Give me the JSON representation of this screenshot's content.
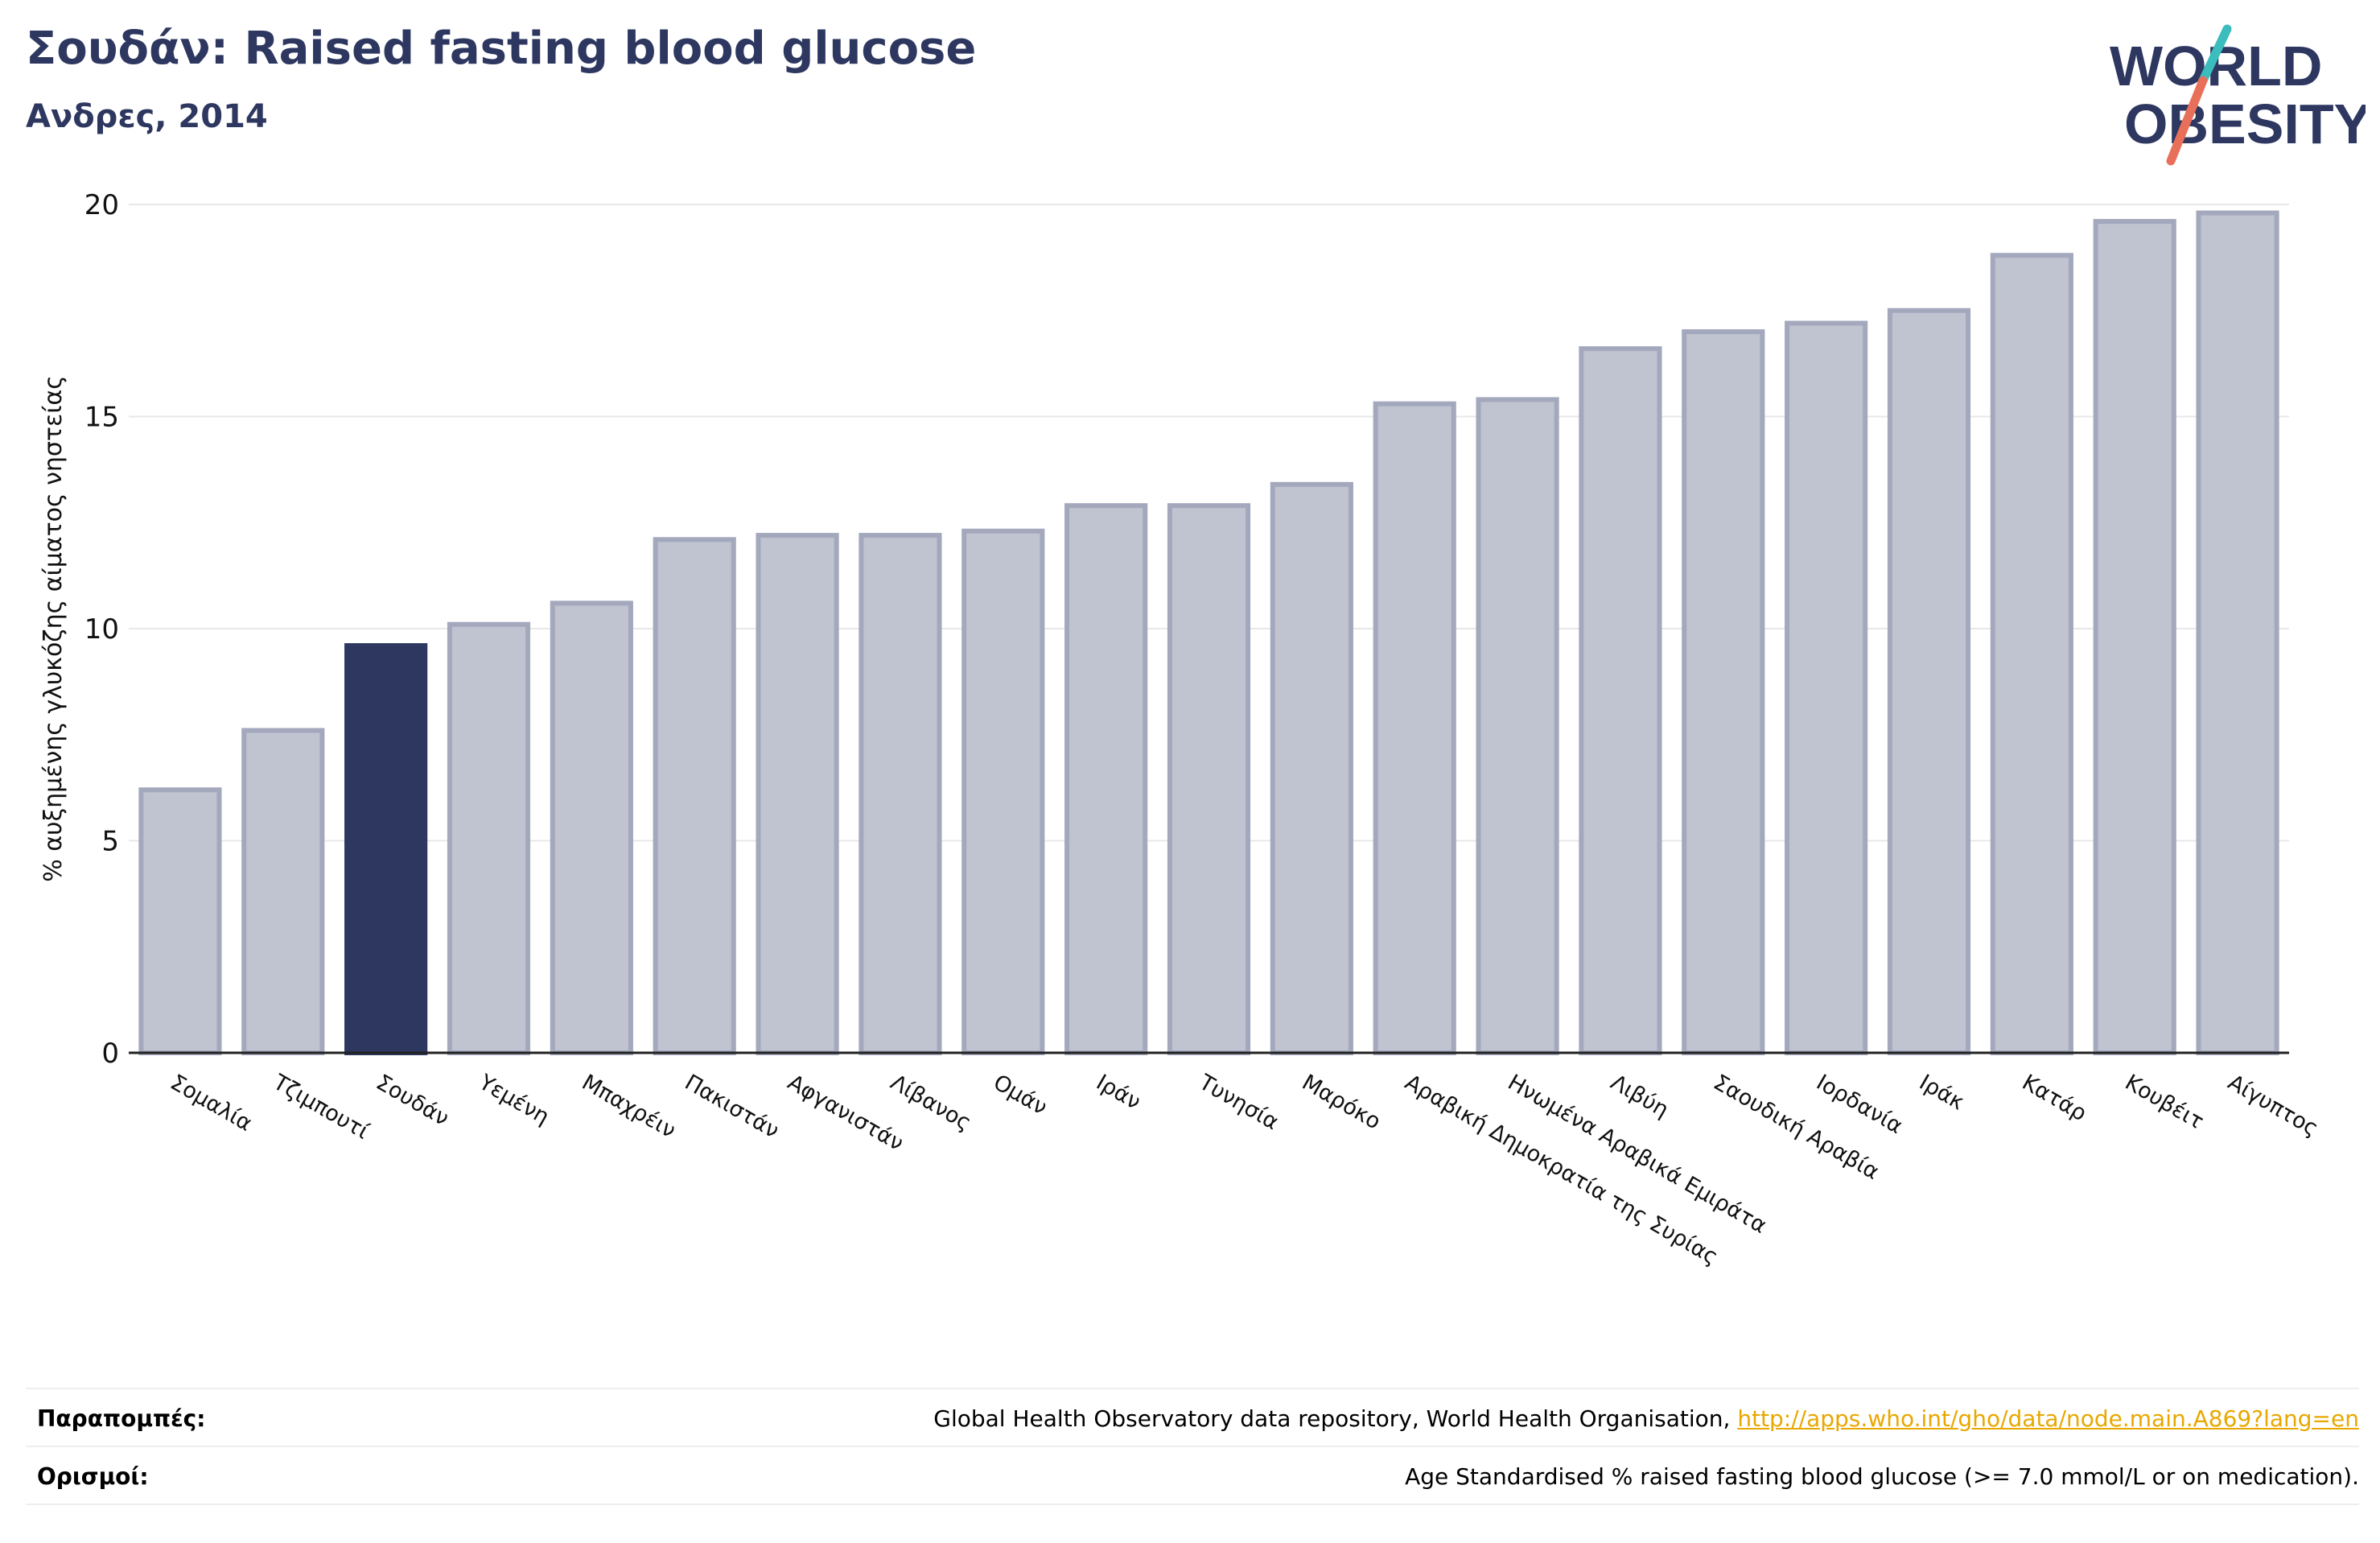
{
  "header": {
    "title": "Σουδάν: Raised fasting blood glucose",
    "subtitle": "Ανδρες, 2014"
  },
  "logo": {
    "line1": "WORLD",
    "line2": "OBESITY",
    "text_color": "#2d3760",
    "slash_top_color": "#3bbdbd",
    "slash_bottom_color": "#e8705a"
  },
  "chart_data": {
    "type": "bar",
    "title": "Σουδάν: Raised fasting blood glucose",
    "subtitle": "Ανδρες, 2014",
    "ylabel": "% αυξημένης γλυκόζης αίματος νηστείας",
    "xlabel": "",
    "ylim": [
      0,
      20
    ],
    "yticks": [
      0,
      5,
      10,
      15,
      20
    ],
    "grid": true,
    "highlight": "Σουδάν",
    "colors": {
      "bar_fill": "#c0c3d0",
      "bar_edge": "#a3a8bd",
      "highlight_fill": "#2d3760",
      "axis": "#222222",
      "grid": "#e8e8e8"
    },
    "categories": [
      "Σομαλία",
      "Τζιμπουτί",
      "Σουδάν",
      "Υεμένη",
      "Μπαχρέιν",
      "Πακιστάν",
      "Αφγανιστάν",
      "Λίβανος",
      "Ομάν",
      "Ιράν",
      "Τυνησία",
      "Μαρόκο",
      "Αραβική Δημοκρατία της Συρίας",
      "Ηνωμένα Αραβικά Εμιράτα",
      "Λιβύη",
      "Σαουδική Αραβία",
      "Ιορδανία",
      "Ιράκ",
      "Κατάρ",
      "Κουβέιτ",
      "Αίγυπτος"
    ],
    "values": [
      6.2,
      7.6,
      9.6,
      10.1,
      10.6,
      12.1,
      12.2,
      12.2,
      12.3,
      12.9,
      12.9,
      13.4,
      15.3,
      15.4,
      16.6,
      17.0,
      17.2,
      17.5,
      18.8,
      19.6,
      19.8
    ]
  },
  "footer": {
    "references_label": "Παραπομπές:",
    "references_text": "Global Health Observatory data repository, World Health Organisation, ",
    "references_link": "http://apps.who.int/gho/data/node.main.A869?lang=en",
    "definitions_label": "Ορισμοί:",
    "definitions_text": "Age Standardised % raised fasting blood glucose (>= 7.0 mmol/L or on medication)."
  }
}
